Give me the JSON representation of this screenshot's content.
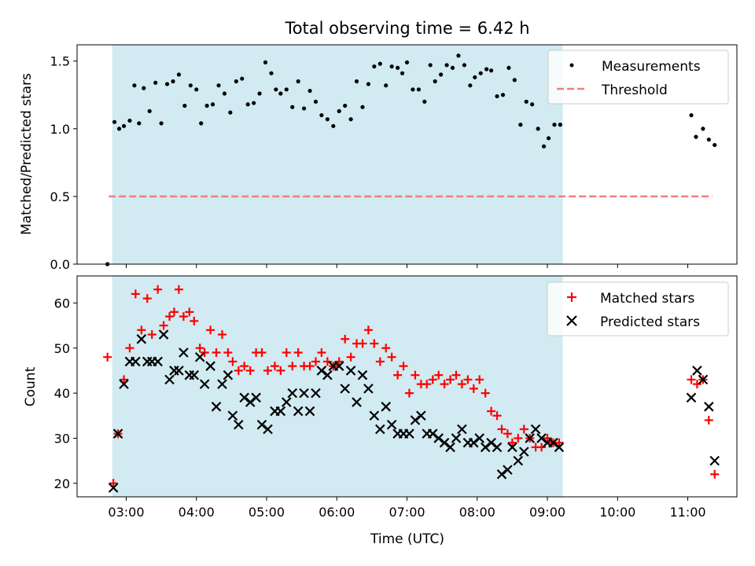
{
  "title": "Total observing time = 6.42 h",
  "colors": {
    "shade": "#add8e6",
    "measurement": "#000000",
    "threshold": "#f08080",
    "matched": "#ff0000",
    "predicted": "#000000"
  },
  "chart_data": [
    {
      "type": "scatter",
      "ylabel": "Matched/Predicted stars",
      "ylim": [
        0.0,
        1.62
      ],
      "yticks": [
        "0.0",
        "0.5",
        "1.0",
        "1.5"
      ],
      "ytick_values": [
        0.0,
        0.5,
        1.0,
        1.5
      ],
      "legend": {
        "placement": "upper-right",
        "entries": [
          "Measurements",
          "Threshold"
        ]
      },
      "threshold": {
        "name": "Threshold",
        "value": 0.5,
        "x_from": 2.75,
        "x_to": 11.35
      },
      "series": [
        {
          "name": "Measurements",
          "x": [
            2.733,
            2.833,
            2.9,
            2.967,
            3.05,
            3.117,
            3.183,
            3.25,
            3.333,
            3.417,
            3.5,
            3.583,
            3.667,
            3.75,
            3.833,
            3.917,
            4.0,
            4.067,
            4.15,
            4.233,
            4.317,
            4.4,
            4.483,
            4.567,
            4.65,
            4.733,
            4.817,
            4.9,
            4.983,
            5.067,
            5.133,
            5.2,
            5.283,
            5.367,
            5.45,
            5.533,
            5.617,
            5.7,
            5.783,
            5.867,
            5.95,
            6.033,
            6.117,
            6.2,
            6.283,
            6.367,
            6.45,
            6.533,
            6.617,
            6.7,
            6.783,
            6.867,
            6.933,
            7.0,
            7.083,
            7.167,
            7.25,
            7.333,
            7.4,
            7.483,
            7.567,
            7.65,
            7.733,
            7.817,
            7.9,
            7.967,
            8.05,
            8.133,
            8.2,
            8.283,
            8.367,
            8.45,
            8.533,
            8.617,
            8.7,
            8.783,
            8.867,
            8.95,
            9.017,
            9.1,
            9.183,
            11.05,
            11.117,
            11.217,
            11.3,
            11.383
          ],
          "y": [
            0.0,
            1.05,
            1.0,
            1.02,
            1.06,
            1.32,
            1.04,
            1.3,
            1.13,
            1.34,
            1.04,
            1.33,
            1.35,
            1.4,
            1.17,
            1.32,
            1.29,
            1.04,
            1.17,
            1.18,
            1.32,
            1.26,
            1.12,
            1.35,
            1.37,
            1.18,
            1.19,
            1.26,
            1.49,
            1.41,
            1.29,
            1.26,
            1.29,
            1.16,
            1.35,
            1.15,
            1.28,
            1.2,
            1.1,
            1.07,
            1.02,
            1.13,
            1.17,
            1.07,
            1.35,
            1.16,
            1.33,
            1.46,
            1.48,
            1.32,
            1.46,
            1.45,
            1.41,
            1.49,
            1.29,
            1.29,
            1.2,
            1.47,
            1.35,
            1.4,
            1.47,
            1.45,
            1.54,
            1.47,
            1.32,
            1.38,
            1.41,
            1.44,
            1.43,
            1.24,
            1.25,
            1.45,
            1.36,
            1.03,
            1.2,
            1.18,
            1.0,
            0.87,
            0.93,
            1.03,
            1.03,
            1.1,
            0.94,
            1.0,
            0.92,
            0.88
          ]
        }
      ]
    },
    {
      "type": "scatter",
      "xlabel": "Time (UTC)",
      "ylabel": "Count",
      "ylim": [
        17,
        66
      ],
      "xlim": [
        2.3,
        11.7
      ],
      "yticks": [
        "20",
        "30",
        "40",
        "50",
        "60"
      ],
      "ytick_values": [
        20,
        30,
        40,
        50,
        60
      ],
      "xticks": [
        "03:00",
        "04:00",
        "05:00",
        "06:00",
        "07:00",
        "08:00",
        "09:00",
        "10:00",
        "11:00"
      ],
      "xtick_values": [
        3,
        4,
        5,
        6,
        7,
        8,
        9,
        10,
        11
      ],
      "shaded_span": [
        2.8,
        9.22
      ],
      "legend": {
        "placement": "upper-right",
        "entries": [
          "Matched stars",
          "Predicted stars"
        ]
      },
      "series": [
        {
          "name": "Matched stars",
          "marker": "+",
          "x": [
            2.733,
            2.817,
            2.883,
            2.967,
            3.05,
            3.133,
            3.217,
            3.3,
            3.367,
            3.45,
            3.533,
            3.617,
            3.683,
            3.75,
            3.817,
            3.9,
            3.967,
            4.05,
            4.117,
            4.2,
            4.283,
            4.367,
            4.45,
            4.517,
            4.6,
            4.683,
            4.767,
            4.85,
            4.933,
            5.017,
            5.117,
            5.2,
            5.283,
            5.367,
            5.45,
            5.533,
            5.617,
            5.7,
            5.783,
            5.867,
            5.95,
            6.033,
            6.117,
            6.2,
            6.283,
            6.367,
            6.45,
            6.533,
            6.617,
            6.7,
            6.783,
            6.867,
            6.95,
            7.033,
            7.117,
            7.2,
            7.283,
            7.367,
            7.45,
            7.533,
            7.617,
            7.7,
            7.783,
            7.867,
            7.95,
            8.033,
            8.117,
            8.2,
            8.283,
            8.35,
            8.433,
            8.5,
            8.583,
            8.667,
            8.75,
            8.833,
            8.917,
            9.0,
            9.083,
            9.167,
            11.05,
            11.133,
            11.217,
            11.3,
            11.383
          ],
          "y": [
            48,
            20,
            31,
            43,
            50,
            62,
            54,
            61,
            53,
            63,
            55,
            57,
            58,
            63,
            57,
            58,
            56,
            50,
            49,
            54,
            49,
            53,
            49,
            47,
            45,
            46,
            45,
            49,
            49,
            45,
            46,
            45,
            49,
            46,
            49,
            46,
            46,
            47,
            49,
            47,
            46,
            47,
            52,
            48,
            51,
            51,
            54,
            51,
            47,
            50,
            48,
            44,
            46,
            40,
            44,
            42,
            42,
            43,
            44,
            42,
            43,
            44,
            42,
            43,
            41,
            43,
            40,
            36,
            35,
            32,
            31,
            29,
            30,
            32,
            30,
            28,
            28,
            30,
            29,
            29,
            43,
            42,
            43,
            34,
            22
          ]
        },
        {
          "name": "Predicted stars",
          "marker": "x",
          "x": [
            2.817,
            2.883,
            2.967,
            3.05,
            3.133,
            3.217,
            3.3,
            3.367,
            3.45,
            3.533,
            3.617,
            3.683,
            3.75,
            3.817,
            3.9,
            3.967,
            4.05,
            4.117,
            4.2,
            4.283,
            4.367,
            4.45,
            4.517,
            4.6,
            4.683,
            4.767,
            4.85,
            4.933,
            5.017,
            5.117,
            5.2,
            5.283,
            5.367,
            5.45,
            5.533,
            5.617,
            5.7,
            5.783,
            5.867,
            5.95,
            6.033,
            6.117,
            6.2,
            6.283,
            6.367,
            6.45,
            6.533,
            6.617,
            6.7,
            6.783,
            6.867,
            6.95,
            7.033,
            7.117,
            7.2,
            7.283,
            7.367,
            7.45,
            7.533,
            7.617,
            7.7,
            7.783,
            7.867,
            7.95,
            8.033,
            8.117,
            8.2,
            8.283,
            8.35,
            8.433,
            8.5,
            8.583,
            8.667,
            8.75,
            8.833,
            8.917,
            9.0,
            9.083,
            9.167,
            11.05,
            11.133,
            11.217,
            11.3,
            11.383
          ],
          "y": [
            19,
            31,
            42,
            47,
            47,
            52,
            47,
            47,
            47,
            53,
            43,
            45,
            45,
            49,
            44,
            44,
            48,
            42,
            46,
            37,
            42,
            44,
            35,
            33,
            39,
            38,
            39,
            33,
            32,
            36,
            36,
            38,
            40,
            36,
            40,
            36,
            40,
            45,
            44,
            46,
            46,
            41,
            45,
            38,
            44,
            41,
            35,
            32,
            37,
            33,
            31,
            31,
            31,
            34,
            35,
            31,
            31,
            30,
            29,
            28,
            30,
            32,
            29,
            29,
            30,
            28,
            29,
            28,
            22,
            23,
            28,
            25,
            27,
            30,
            32,
            30,
            29,
            29,
            28,
            39,
            45,
            43,
            37,
            25
          ]
        }
      ]
    }
  ]
}
